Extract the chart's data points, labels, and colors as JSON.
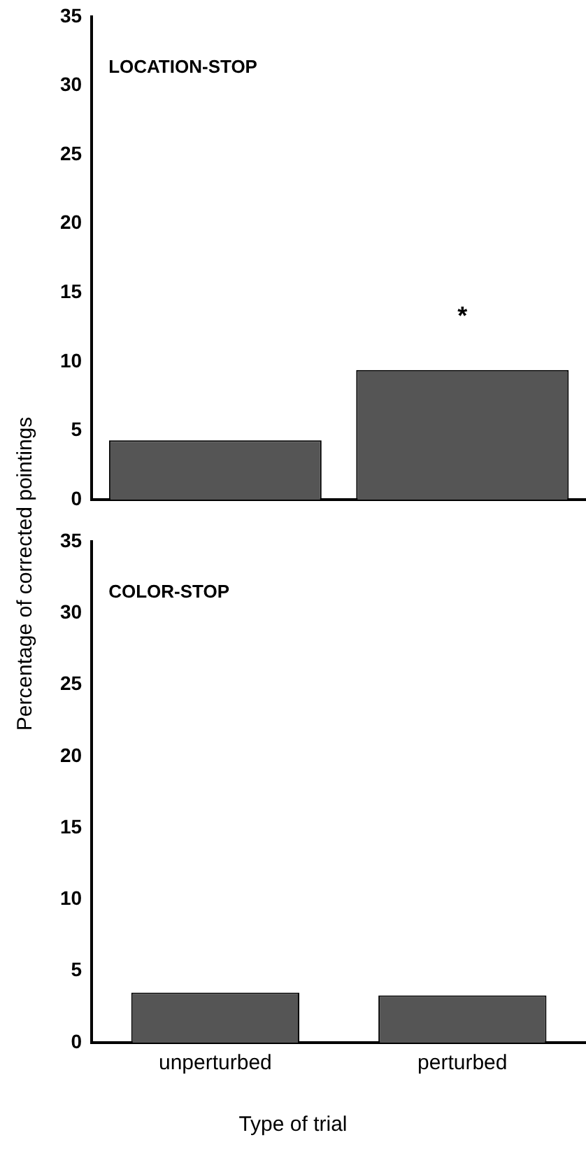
{
  "chart_data": [
    {
      "type": "bar",
      "title": "LOCATION-STOP",
      "ylabel": "Percentage of corrected pointings",
      "categories": [
        null,
        null
      ],
      "values": [
        4.3,
        9.4
      ],
      "color": "#555555",
      "ylim": [
        0,
        35
      ],
      "yticks": [
        0,
        5,
        10,
        15,
        20,
        25,
        30,
        35
      ],
      "tick_labels": "y",
      "grid": false,
      "legend": false,
      "annotations": [
        "*"
      ]
    },
    {
      "type": "bar",
      "title": "COLOR-STOP",
      "xlabel": "Type of trial",
      "categories": [
        "unperturbed",
        "perturbed"
      ],
      "values": [
        3.5,
        3.3
      ],
      "color": "#555555",
      "ylim": [
        0,
        35
      ],
      "yticks": [
        0,
        5,
        10,
        15,
        20,
        25,
        30,
        35
      ],
      "grid": false,
      "legend": false
    }
  ]
}
